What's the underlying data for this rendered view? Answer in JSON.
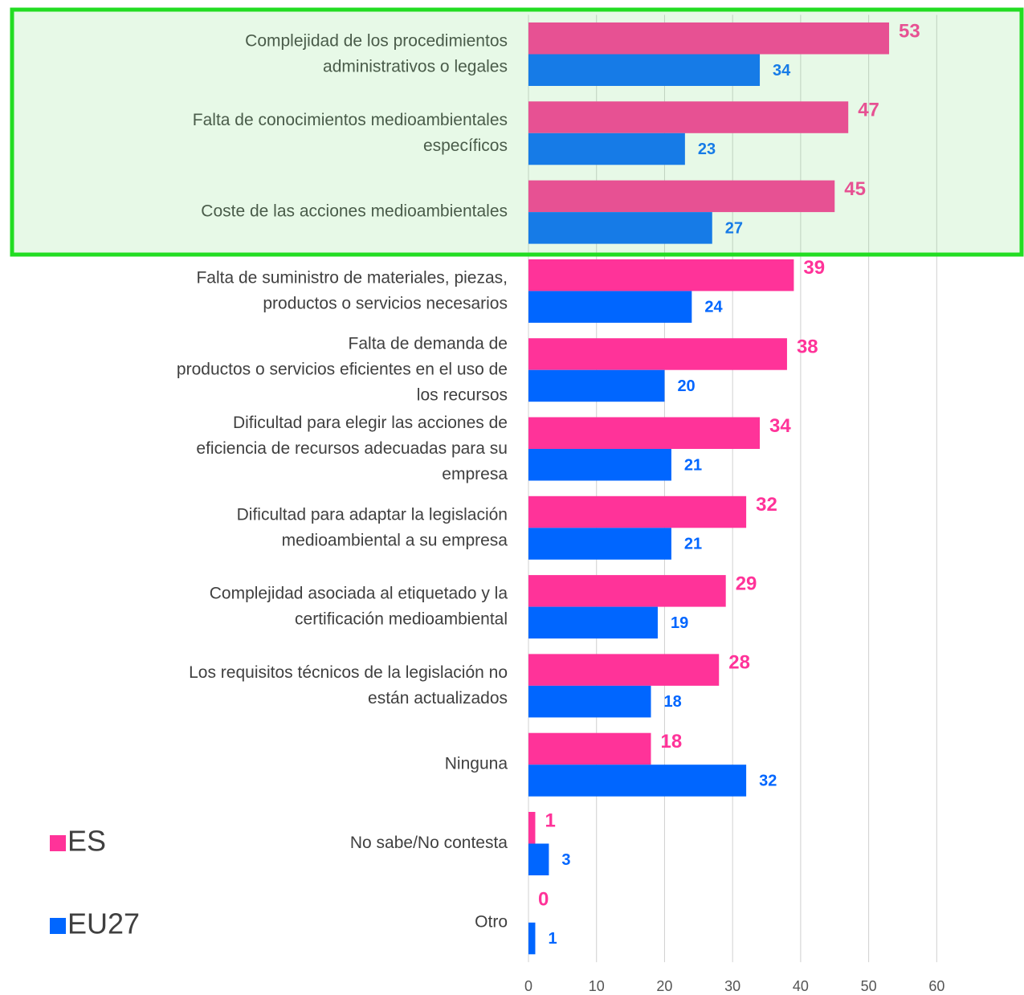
{
  "chart_data": {
    "type": "barh",
    "categories": [
      "Complejidad de los procedimientos\nadministrativos o legales",
      "Falta de conocimientos medioambientales\nespecíficos",
      "Coste de las acciones medioambientales",
      "Falta de suministro de materiales, piezas,\nproductos o servicios necesarios",
      "Falta de demanda de\nproductos o servicios eficientes en el uso de\nlos recursos",
      "Dificultad para elegir las acciones de\neficiencia de recursos adecuadas para su\nempresa",
      "Dificultad para adaptar la legislación\nmedioambiental a su empresa",
      "Complejidad asociada al etiquetado y la\ncertificación medioambiental",
      "Los requisitos técnicos de la legislación no\nestán actualizados",
      "Ninguna",
      "No sabe/No contesta",
      "Otro"
    ],
    "series": [
      {
        "name": "ES",
        "color": "#ff3399",
        "values": [
          53,
          47,
          45,
          39,
          38,
          34,
          32,
          29,
          28,
          18,
          1,
          0
        ]
      },
      {
        "name": "EU27",
        "color": "#0066ff",
        "values": [
          34,
          23,
          27,
          24,
          20,
          21,
          21,
          19,
          18,
          32,
          3,
          1
        ]
      }
    ],
    "xlim": [
      0,
      72
    ],
    "xticks": [
      0,
      10,
      20,
      30,
      40,
      50,
      60
    ],
    "grid": true,
    "legend": "left"
  }
}
